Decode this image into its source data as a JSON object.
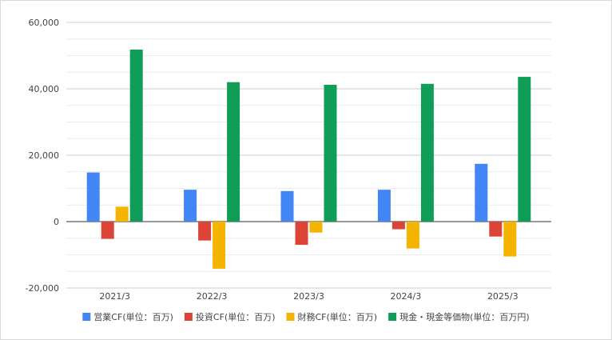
{
  "chart_data": {
    "type": "bar",
    "title": "",
    "xlabel": "",
    "ylabel": "",
    "categories": [
      "2021/3",
      "2022/3",
      "2023/3",
      "2024/3",
      "2025/3"
    ],
    "ylim": [
      -20000,
      60000
    ],
    "yticks": [
      -20000,
      0,
      20000,
      40000,
      60000
    ],
    "ytick_labels": [
      "-20,000",
      "0",
      "20,000",
      "40,000",
      "60,000"
    ],
    "grid": "horizontal",
    "legend_position": "bottom",
    "series": [
      {
        "name": "営業CF(単位：百万)",
        "color": "#4285f4",
        "values": [
          14800,
          9600,
          9200,
          9600,
          17400
        ]
      },
      {
        "name": "投資CF(単位：百万)",
        "color": "#db4437",
        "values": [
          -5200,
          -5700,
          -7000,
          -2300,
          -4500
        ]
      },
      {
        "name": "財務CF(単位：百万)",
        "color": "#f4b400",
        "values": [
          4500,
          -14200,
          -3300,
          -8100,
          -10500
        ]
      },
      {
        "name": "現金・現金等価物(単位：百万円)",
        "color": "#0f9d58",
        "values": [
          51800,
          42000,
          41200,
          41500,
          43600
        ]
      }
    ]
  }
}
